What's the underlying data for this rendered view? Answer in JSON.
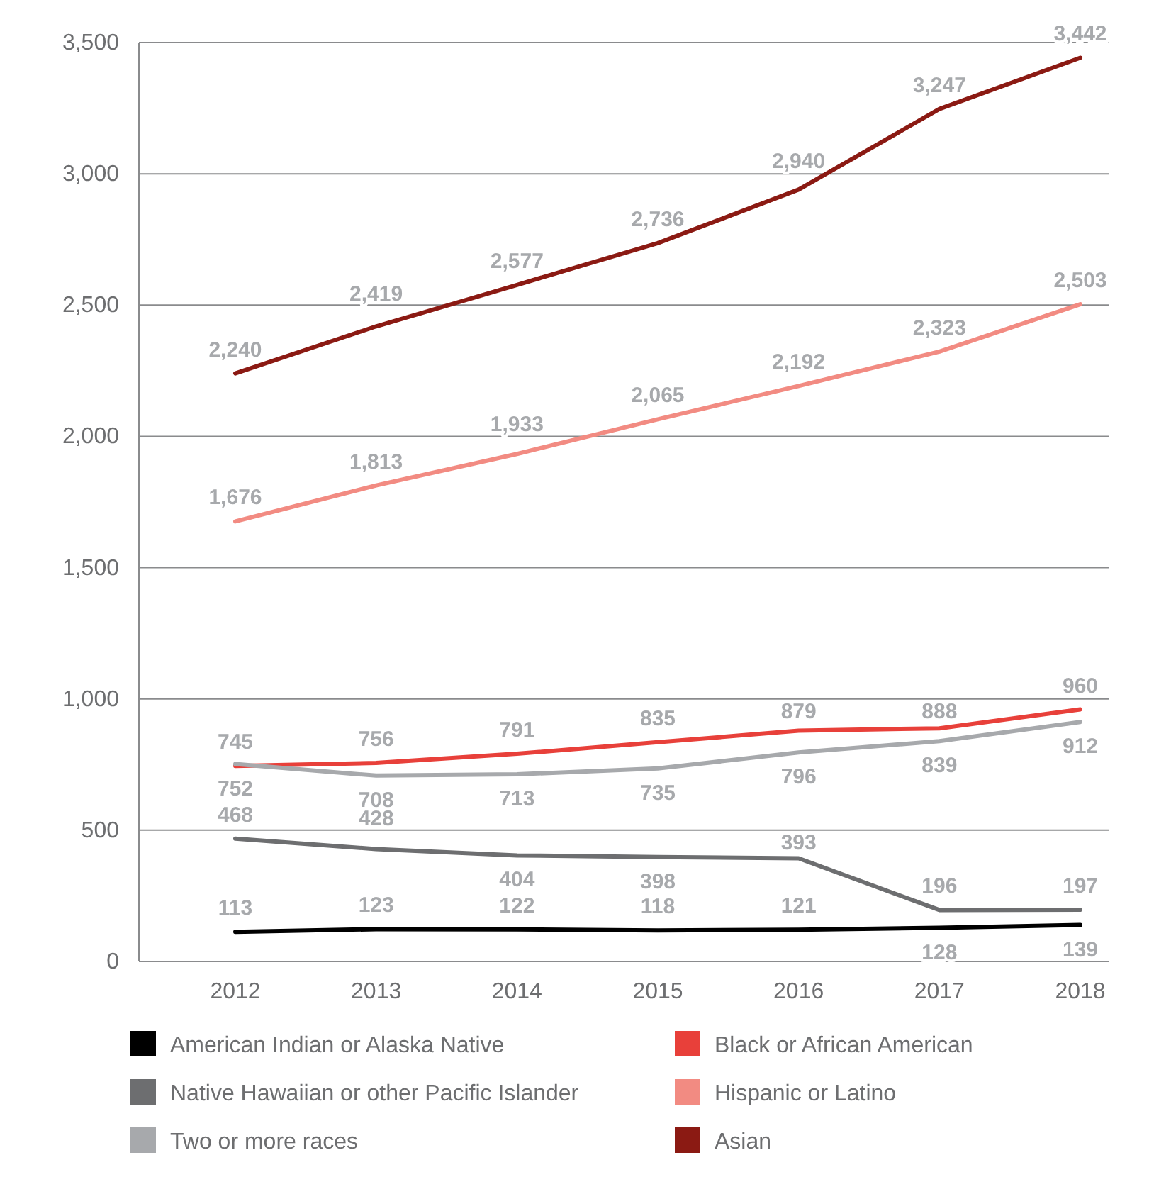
{
  "chart_data": {
    "type": "line",
    "categories": [
      "2012",
      "2013",
      "2014",
      "2015",
      "2016",
      "2017",
      "2018"
    ],
    "series": [
      {
        "name": "American Indian or Alaska Native",
        "color": "#000000",
        "values": [
          113,
          123,
          122,
          118,
          121,
          128,
          139
        ],
        "value_labels": [
          "113",
          "123",
          "122",
          "118",
          "121",
          "128",
          "139"
        ]
      },
      {
        "name": "Black or African American",
        "color": "#e8403a",
        "values": [
          745,
          756,
          791,
          835,
          879,
          888,
          960
        ],
        "value_labels": [
          "745",
          "756",
          "791",
          "835",
          "879",
          "888",
          "960"
        ]
      },
      {
        "name": "Native Hawaiian or other Pacific Islander",
        "color": "#6d6e70",
        "values": [
          468,
          428,
          404,
          398,
          393,
          196,
          197
        ],
        "value_labels": [
          "468",
          "428",
          "404",
          "398",
          "393",
          "196",
          "197"
        ]
      },
      {
        "name": "Hispanic or Latino",
        "color": "#f28b82",
        "values": [
          1676,
          1813,
          1933,
          2065,
          2192,
          2323,
          2503
        ],
        "value_labels": [
          "1,676",
          "1,813",
          "1,933",
          "2,065",
          "2,192",
          "2,323",
          "2,503"
        ]
      },
      {
        "name": "Two or more races",
        "color": "#a7a9ac",
        "values": [
          752,
          708,
          713,
          735,
          796,
          839,
          912
        ],
        "value_labels": [
          "752",
          "708",
          "713",
          "735",
          "796",
          "839",
          "912"
        ]
      },
      {
        "name": "Asian",
        "color": "#8b1a13",
        "values": [
          2240,
          2419,
          2577,
          2736,
          2940,
          3247,
          3442
        ],
        "value_labels": [
          "2,240",
          "2,419",
          "2,577",
          "2,736",
          "2,940",
          "3,247",
          "3,442"
        ]
      }
    ],
    "ylim": [
      0,
      3500
    ],
    "yticks": [
      0,
      500,
      {
        "value": 1000,
        "label": "1,000"
      },
      {
        "value": 1500,
        "label": "1,500"
      },
      {
        "value": 2000,
        "label": "2,000"
      },
      {
        "value": 2500,
        "label": "2,500"
      },
      {
        "value": 3000,
        "label": "3,000"
      },
      {
        "value": 3500,
        "label": "3,500"
      }
    ],
    "grid": "y",
    "legend": "bottom",
    "marker": "none",
    "line_style": "solid"
  }
}
